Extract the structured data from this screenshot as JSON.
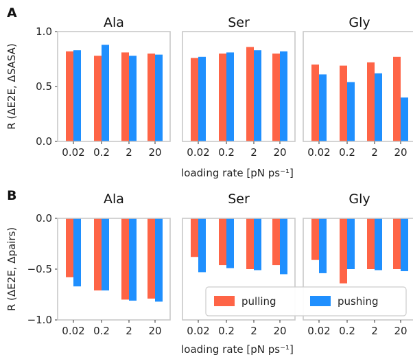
{
  "colors": {
    "pulling": "#fe6446",
    "pushing": "#1f8ffe",
    "frame": "#c8c8c8"
  },
  "legend": {
    "pulling": "pulling",
    "pushing": "pushing"
  },
  "chart_data": [
    {
      "panel": "A",
      "type": "bar",
      "ylabel": "R (ΔE2E, ΔSASA)",
      "xlabel": "loading rate [pN ps⁻¹]",
      "ylim": [
        0.0,
        1.0
      ],
      "yticks": [
        "0.0",
        "0.5",
        "1.0"
      ],
      "yticks_values": [
        0.0,
        0.5,
        1.0
      ],
      "categories": [
        "0.02",
        "0.2",
        "2",
        "20"
      ],
      "subplots": [
        {
          "title": "Ala",
          "series": [
            {
              "name": "pulling",
              "values": [
                0.82,
                0.78,
                0.81,
                0.8
              ]
            },
            {
              "name": "pushing",
              "values": [
                0.83,
                0.88,
                0.78,
                0.79
              ]
            }
          ]
        },
        {
          "title": "Ser",
          "series": [
            {
              "name": "pulling",
              "values": [
                0.76,
                0.8,
                0.86,
                0.8
              ]
            },
            {
              "name": "pushing",
              "values": [
                0.77,
                0.81,
                0.83,
                0.82
              ]
            }
          ]
        },
        {
          "title": "Gly",
          "series": [
            {
              "name": "pulling",
              "values": [
                0.7,
                0.69,
                0.72,
                0.77
              ]
            },
            {
              "name": "pushing",
              "values": [
                0.61,
                0.54,
                0.62,
                0.4
              ]
            }
          ]
        }
      ]
    },
    {
      "panel": "B",
      "type": "bar",
      "ylabel": "R (ΔE2E, Δpairs)",
      "xlabel": "loading rate [pN ps⁻¹]",
      "ylim": [
        -1.0,
        0.0
      ],
      "yticks": [
        "0.0",
        "−0.5",
        "−1.0"
      ],
      "yticks_values": [
        0.0,
        -0.5,
        -1.0
      ],
      "categories": [
        "0.02",
        "0.2",
        "2",
        "20"
      ],
      "subplots": [
        {
          "title": "Ala",
          "series": [
            {
              "name": "pulling",
              "values": [
                -0.58,
                -0.71,
                -0.8,
                -0.79
              ]
            },
            {
              "name": "pushing",
              "values": [
                -0.67,
                -0.71,
                -0.81,
                -0.82
              ]
            }
          ]
        },
        {
          "title": "Ser",
          "series": [
            {
              "name": "pulling",
              "values": [
                -0.38,
                -0.46,
                -0.5,
                -0.46
              ]
            },
            {
              "name": "pushing",
              "values": [
                -0.53,
                -0.49,
                -0.51,
                -0.55
              ]
            }
          ]
        },
        {
          "title": "Gly",
          "series": [
            {
              "name": "pulling",
              "values": [
                -0.41,
                -0.64,
                -0.5,
                -0.5
              ]
            },
            {
              "name": "pushing",
              "values": [
                -0.54,
                -0.5,
                -0.51,
                -0.52
              ]
            }
          ]
        }
      ]
    }
  ]
}
